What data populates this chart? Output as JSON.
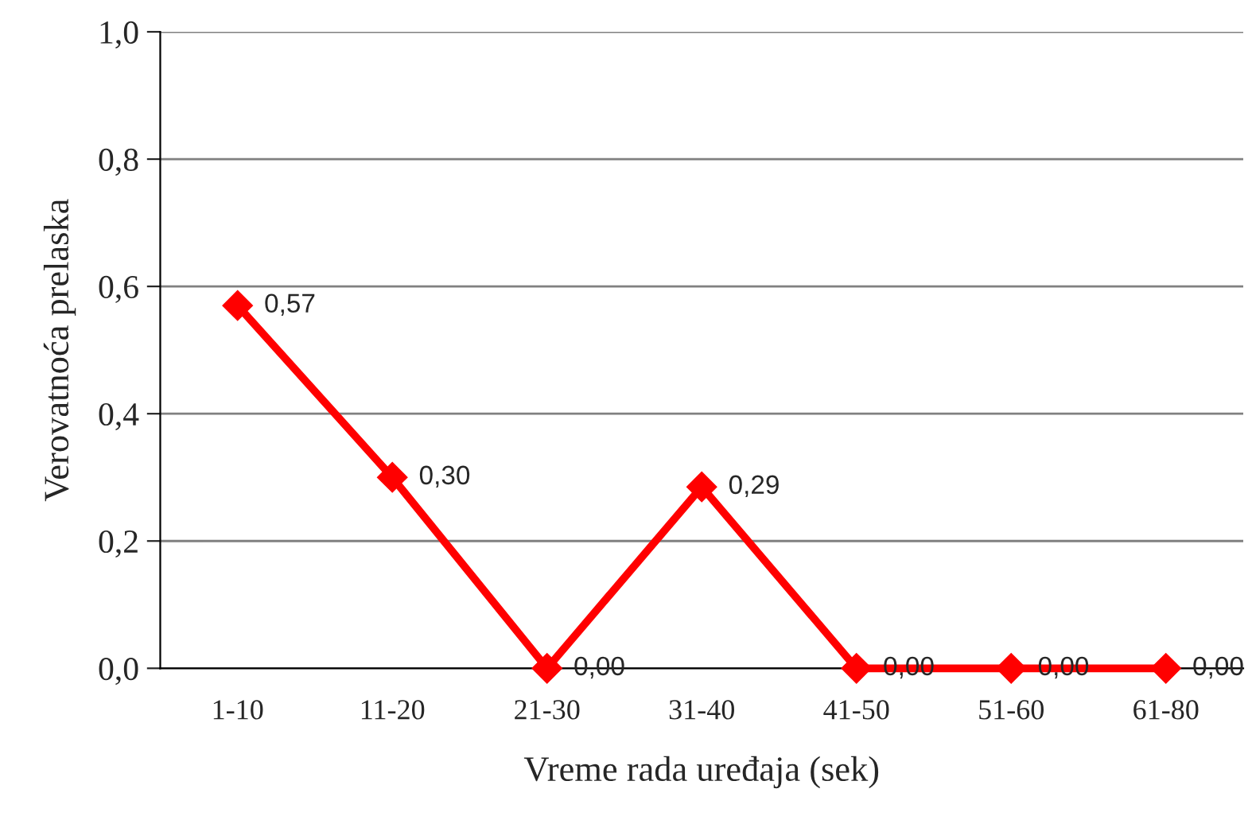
{
  "chart_data": {
    "type": "line",
    "xlabel": "Vreme rada uređaja (sek)",
    "ylabel": "Verovatnoća prelaska",
    "categories": [
      "1-10",
      "11-20",
      "21-30",
      "31-40",
      "41-50",
      "51-60",
      "61-80"
    ],
    "series": [
      {
        "color": "#ff0000",
        "values": [
          0.57,
          0.3,
          0.0,
          0.285,
          0.0,
          0.0,
          0.0
        ],
        "value_labels": [
          "0,57",
          "0,30",
          "0,00",
          "0,29",
          "0,00",
          "0,00",
          "0,00"
        ]
      }
    ],
    "ylim": [
      0,
      1
    ],
    "yticks": [
      {
        "value": 0,
        "label": "0,0"
      },
      {
        "value": 0.2,
        "label": "0,2"
      },
      {
        "value": 0.4,
        "label": "0,4"
      },
      {
        "value": 0.6,
        "label": "0,6"
      },
      {
        "value": 0.8,
        "label": "0,8"
      },
      {
        "value": 1,
        "label": "1,0"
      }
    ],
    "grid": "y",
    "marker": "diamond",
    "line_style": "solid",
    "legend": false
  }
}
